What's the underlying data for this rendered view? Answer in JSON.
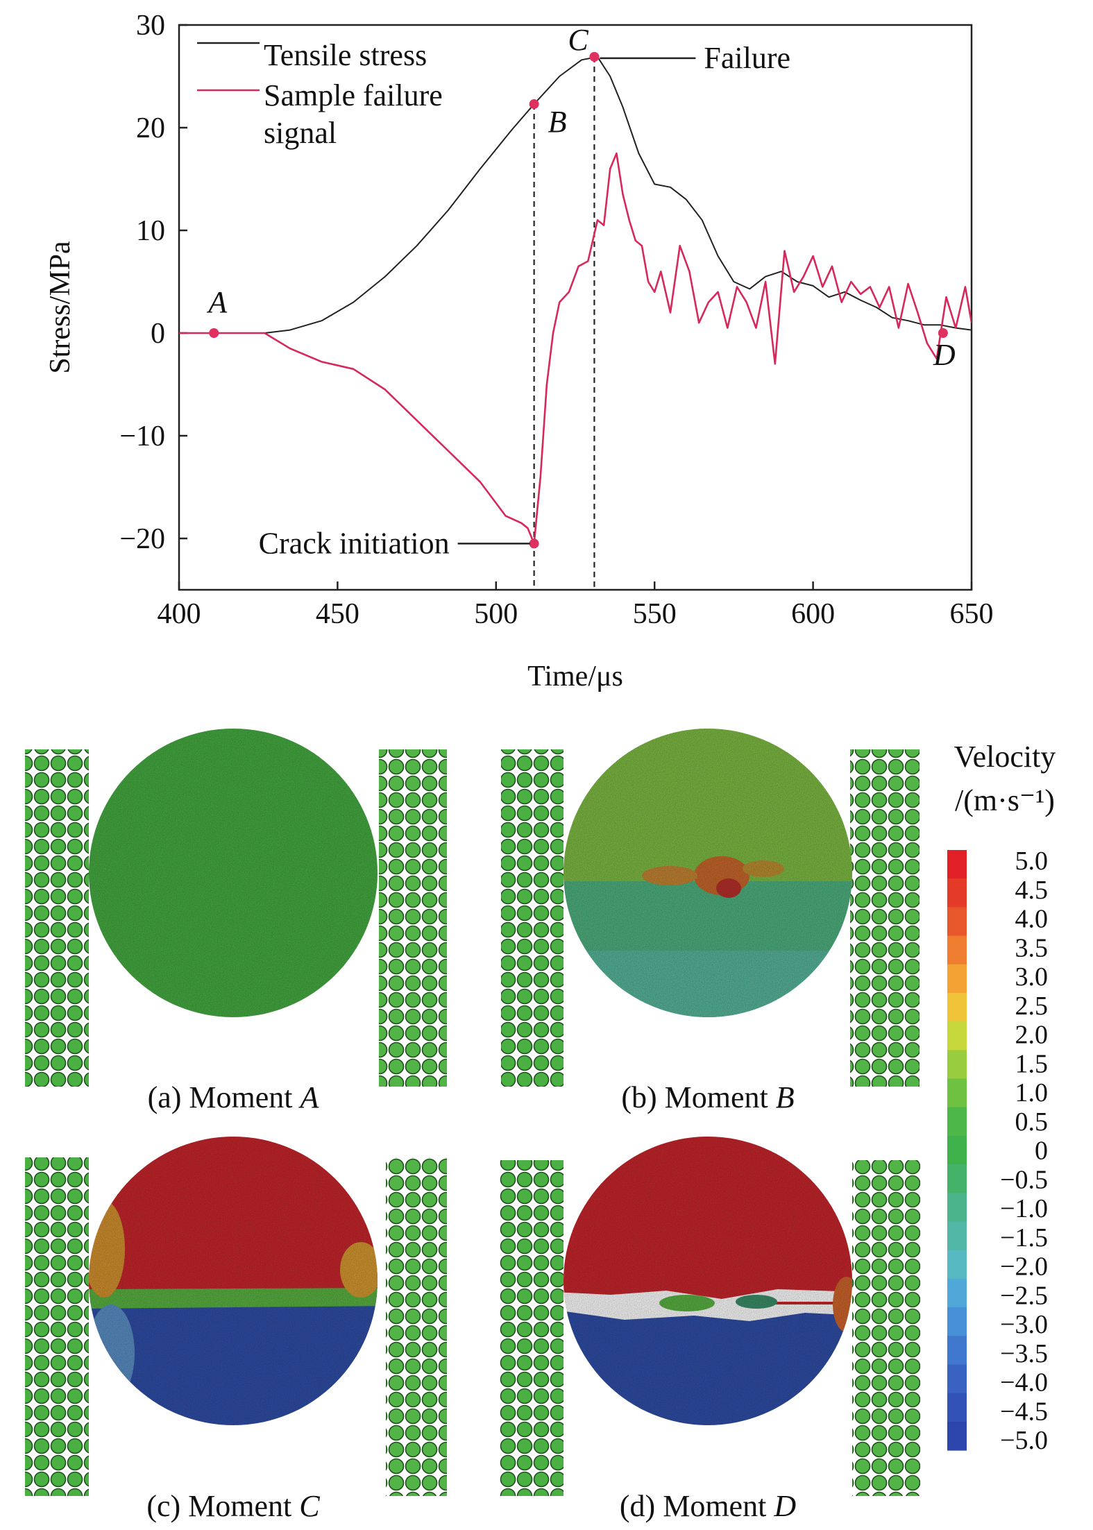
{
  "chart_data": {
    "type": "line",
    "xlabel": "Time/μs",
    "ylabel": "Stress/MPa",
    "xlim": [
      400,
      650
    ],
    "ylim": [
      -25,
      30
    ],
    "x_ticks": [
      "400",
      "450",
      "500",
      "550",
      "600",
      "650"
    ],
    "y_ticks": [
      "−20",
      "−10",
      "0",
      "10",
      "20",
      "30"
    ],
    "legend": {
      "placement": "top-left",
      "entries": [
        "Tensile stress",
        "Sample failure",
        "signal"
      ]
    },
    "series": [
      {
        "name": "Tensile stress",
        "color": "#222222",
        "x": [
          400,
          410,
          420,
          427,
          435,
          445,
          455,
          465,
          475,
          485,
          495,
          505,
          512,
          520,
          527,
          532,
          536,
          540,
          545,
          550,
          555,
          560,
          565,
          570,
          575,
          580,
          585,
          590,
          595,
          600,
          605,
          610,
          615,
          620,
          625,
          630,
          635,
          640,
          645,
          650
        ],
        "y": [
          0,
          0,
          0,
          0,
          0.3,
          1.2,
          3.0,
          5.5,
          8.5,
          12.0,
          16.0,
          19.8,
          22.3,
          25.0,
          26.6,
          26.9,
          25.0,
          22.0,
          17.5,
          14.5,
          14.2,
          13.0,
          11.0,
          7.5,
          5.0,
          4.3,
          5.5,
          6.0,
          5.0,
          4.6,
          3.5,
          4.0,
          3.2,
          2.5,
          1.5,
          1.2,
          0.8,
          0.8,
          0.5,
          0.3
        ]
      },
      {
        "name": "Sample failure signal",
        "color": "#d6285a",
        "x": [
          400,
          410,
          420,
          427,
          435,
          445,
          455,
          465,
          475,
          485,
          495,
          503,
          508,
          510,
          512,
          514,
          516,
          518,
          520,
          523,
          526,
          529,
          532,
          534,
          536,
          538,
          540,
          542,
          544,
          546,
          548,
          550,
          552,
          555,
          558,
          561,
          564,
          567,
          570,
          573,
          576,
          579,
          582,
          585,
          588,
          591,
          594,
          597,
          600,
          603,
          606,
          609,
          612,
          615,
          618,
          621,
          624,
          627,
          630,
          633,
          636,
          639,
          642,
          645,
          648,
          650
        ],
        "y": [
          0,
          0,
          0,
          0,
          -1.5,
          -2.8,
          -3.5,
          -5.5,
          -8.5,
          -11.5,
          -14.5,
          -17.8,
          -18.5,
          -19.0,
          -20.5,
          -14.0,
          -5.0,
          0,
          3.0,
          4.0,
          6.5,
          7.0,
          11.0,
          10.5,
          16.0,
          17.5,
          13.5,
          11.0,
          9.0,
          8.5,
          5.0,
          4.0,
          6.0,
          2.0,
          8.5,
          6.0,
          1.0,
          3.0,
          4.0,
          0.5,
          4.5,
          3.0,
          0.5,
          5.0,
          -3.0,
          8.0,
          4.0,
          5.5,
          7.5,
          4.5,
          6.5,
          3.0,
          5.0,
          3.8,
          4.5,
          2.5,
          4.5,
          0.5,
          4.8,
          2.0,
          -1.0,
          -2.5,
          3.5,
          0.5,
          4.5,
          1.0
        ]
      }
    ],
    "points": [
      {
        "label": "A",
        "x": 411,
        "y": 0
      },
      {
        "label": "B",
        "x": 512,
        "y": 22.3
      },
      {
        "label": "C",
        "x": 531,
        "y": 26.9
      },
      {
        "label": "D",
        "x": 641,
        "y": 0
      },
      {
        "label": "",
        "x": 512,
        "y": -20.5
      }
    ],
    "annotations": [
      {
        "text": "Crack initiation",
        "x": 512,
        "y": -20.5
      },
      {
        "text": "Failure",
        "x": 531,
        "y": 26.9
      }
    ],
    "vertical_lines_x": [
      512,
      531
    ],
    "marker_color": "#e03060"
  },
  "panels": [
    {
      "prefix": "(a) Moment ",
      "moment": "A"
    },
    {
      "prefix": "(b) Moment ",
      "moment": "B"
    },
    {
      "prefix": "(c) Moment ",
      "moment": "C"
    },
    {
      "prefix": "(d) Moment ",
      "moment": "D"
    }
  ],
  "colorbar": {
    "title_line1": "Velocity",
    "title_line2": "/(m·s⁻¹)",
    "ticks": [
      "5.0",
      "4.5",
      "4.0",
      "3.5",
      "3.0",
      "2.5",
      "2.0",
      "1.5",
      "1.0",
      "0.5",
      "0",
      "−0.5",
      "−1.0",
      "−1.5",
      "−2.0",
      "−2.5",
      "−3.0",
      "−3.5",
      "−4.0",
      "−4.5",
      "−5.0"
    ],
    "colors": [
      "#e01f26",
      "#e33b28",
      "#e8572c",
      "#ee7d30",
      "#f3a233",
      "#f0c438",
      "#c6d83b",
      "#99cd3e",
      "#6fc142",
      "#4db848",
      "#3fb24c",
      "#45b26a",
      "#4bb48a",
      "#52b6a6",
      "#57b9c2",
      "#4fa8d8",
      "#4790d6",
      "#3f78cd",
      "#3a62c2",
      "#3352b8",
      "#2d46ad"
    ]
  },
  "colors": {
    "particle_green": "#4bb043",
    "red_field": "#c9242c",
    "blue_field": "#2d4aa6"
  }
}
